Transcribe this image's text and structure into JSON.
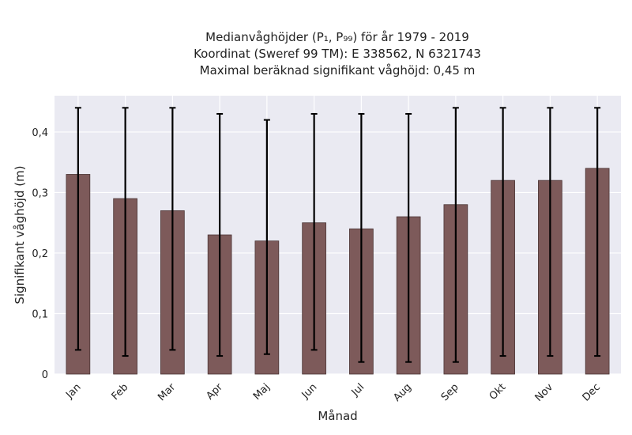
{
  "chart_data": {
    "type": "bar",
    "title_lines": [
      "Medianvåghöjder (P₁, P₉₉) för år 1979 - 2019",
      "Koordinat (Sweref 99 TM): E 338562, N 6321743",
      "Maximal beräknad signifikant våghöjd: 0,45 m"
    ],
    "xlabel": "Månad",
    "ylabel": "Signifikant våghöjd (m)",
    "categories": [
      "Jan",
      "Feb",
      "Mar",
      "Apr",
      "Maj",
      "Jun",
      "Jul",
      "Aug",
      "Sep",
      "Okt",
      "Nov",
      "Dec"
    ],
    "values": [
      0.33,
      0.29,
      0.27,
      0.23,
      0.22,
      0.25,
      0.24,
      0.26,
      0.28,
      0.32,
      0.32,
      0.34
    ],
    "p1": [
      0.04,
      0.03,
      0.04,
      0.03,
      0.033,
      0.04,
      0.02,
      0.02,
      0.02,
      0.03,
      0.03,
      0.03
    ],
    "p99": [
      0.44,
      0.44,
      0.44,
      0.43,
      0.42,
      0.43,
      0.43,
      0.43,
      0.44,
      0.44,
      0.44,
      0.44
    ],
    "ylim": [
      0,
      0.46
    ],
    "yticks": [
      0,
      0.1,
      0.2,
      0.3,
      0.4
    ],
    "ytick_labels": [
      "0",
      "0,1",
      "0,2",
      "0,3",
      "0,4"
    ],
    "grid": true,
    "colors": {
      "bar": "#7d5a5a",
      "bar_edge": "#4a3434",
      "error_bar": "#000000",
      "plot_bg": "#eaeaf2",
      "grid": "#ffffff"
    }
  }
}
